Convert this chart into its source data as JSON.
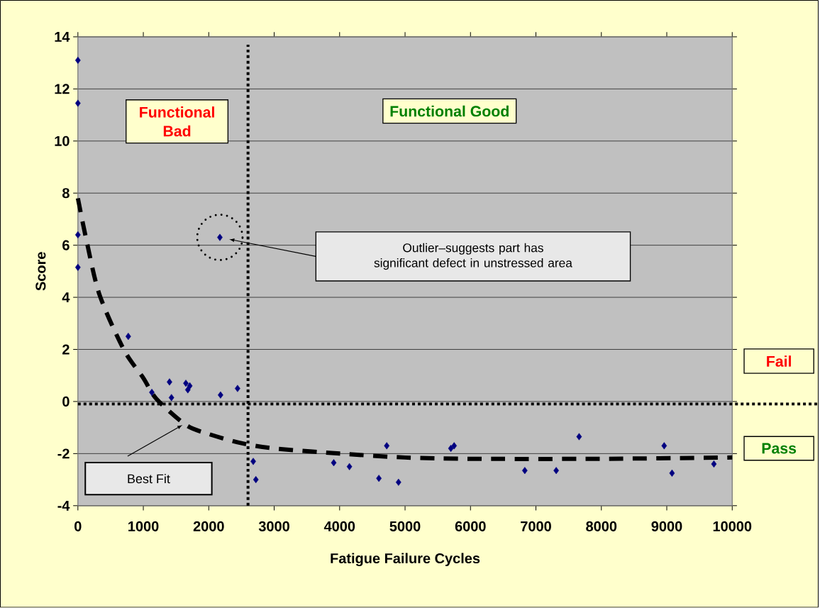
{
  "chart_data": {
    "type": "scatter",
    "xlabel": "Fatigue Failure Cycles",
    "ylabel": "Score",
    "xlim": [
      0,
      10000
    ],
    "xticks": [
      0,
      1000,
      2000,
      3000,
      4000,
      5000,
      6000,
      7000,
      8000,
      9000,
      10000
    ],
    "ylim": [
      -4,
      14
    ],
    "yticks": [
      -4,
      -2,
      0,
      2,
      4,
      6,
      8,
      10,
      12,
      14
    ],
    "grid": "y",
    "series": [
      {
        "type": "scatter",
        "color": "#000080",
        "marker": "diamond",
        "x": [
          0,
          0,
          0,
          0,
          770,
          1130,
          1400,
          1430,
          1650,
          1680,
          1710,
          2170,
          2180,
          2440,
          2680,
          2720,
          3910,
          4150,
          4600,
          4720,
          4900,
          5700,
          5750,
          6830,
          7310,
          7660,
          8960,
          9080,
          9720
        ],
        "values": [
          13.1,
          11.45,
          6.4,
          5.15,
          2.5,
          0.35,
          0.75,
          0.15,
          0.7,
          0.45,
          0.6,
          6.3,
          0.25,
          0.5,
          -2.3,
          -3.0,
          -2.35,
          -2.5,
          -2.95,
          -1.7,
          -3.1,
          -1.8,
          -1.7,
          -2.65,
          -2.65,
          -1.35,
          -1.7,
          -2.75,
          -2.4
        ]
      },
      {
        "type": "line",
        "color": "#000000",
        "line_style": "dashed",
        "marker": "none",
        "x": [
          0,
          130,
          330,
          700,
          1000,
          1200,
          1650,
          2000,
          2500,
          3000,
          4000,
          5000,
          6000,
          8000,
          10000
        ],
        "values": [
          7.8,
          6.2,
          4.1,
          2.0,
          0.9,
          0.1,
          -0.9,
          -1.25,
          -1.6,
          -1.8,
          -2.0,
          -2.15,
          -2.2,
          -2.2,
          -2.15
        ]
      }
    ],
    "ref_lines": [
      {
        "axis": "x",
        "value": 2600,
        "color": "#000000",
        "line_style": "dotted"
      },
      {
        "axis": "y",
        "value": -0.1,
        "color": "#000000",
        "line_style": "dotted"
      }
    ],
    "annotations": [
      "Functional Bad",
      "Functional Good",
      "Outlier–suggests part has significant defect in unstressed area",
      "Best Fit",
      "Fail",
      "Pass"
    ]
  }
}
